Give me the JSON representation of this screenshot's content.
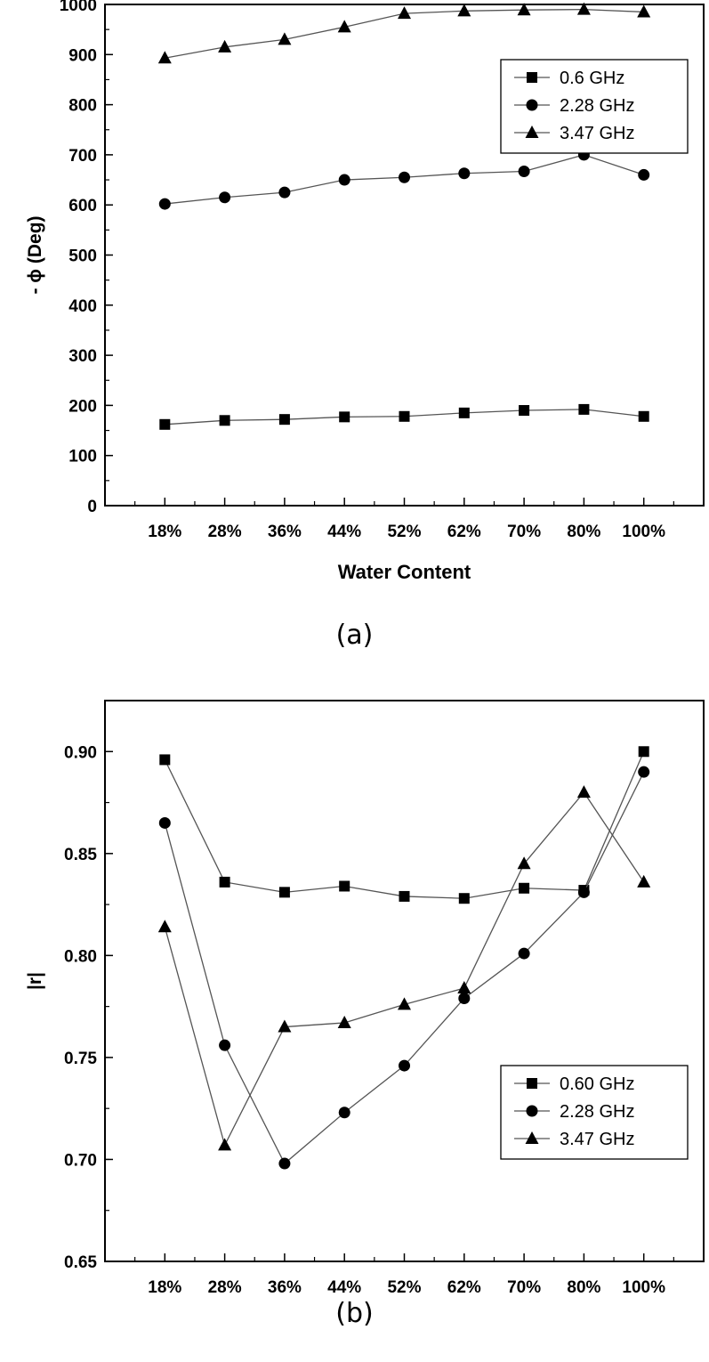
{
  "charts": [
    {
      "type": "line",
      "title": "",
      "caption": "(a)",
      "xlabel": "Water Content",
      "ylabel": "- ϕ (Deg)",
      "categories": [
        "18%",
        "28%",
        "36%",
        "44%",
        "52%",
        "62%",
        "70%",
        "80%",
        "100%"
      ],
      "ylim": [
        0,
        1000
      ],
      "ymajor": [
        0,
        100,
        200,
        300,
        400,
        500,
        600,
        700,
        800,
        900,
        1000
      ],
      "yminor_step": 50,
      "ytick_labels": [
        "0",
        "100",
        "200",
        "300",
        "400",
        "500",
        "600",
        "700",
        "800",
        "900",
        "1000"
      ],
      "legend_position": "top-right",
      "series": [
        {
          "name": "0.6 GHz",
          "marker": "square",
          "values": [
            162,
            170,
            172,
            177,
            178,
            185,
            190,
            192,
            178
          ]
        },
        {
          "name": "2.28 GHz",
          "marker": "circle",
          "values": [
            602,
            615,
            625,
            650,
            655,
            663,
            667,
            700,
            660
          ]
        },
        {
          "name": "3.47 GHz",
          "marker": "triangle",
          "values": [
            893,
            915,
            930,
            955,
            982,
            987,
            989,
            990,
            985
          ]
        }
      ]
    },
    {
      "type": "line",
      "title": "",
      "caption": "(b)",
      "xlabel": "Water Content",
      "ylabel": "|r|",
      "categories": [
        "18%",
        "28%",
        "36%",
        "44%",
        "52%",
        "62%",
        "70%",
        "80%",
        "100%"
      ],
      "ylim": [
        0.65,
        0.925
      ],
      "ymajor": [
        0.65,
        0.7,
        0.75,
        0.8,
        0.85,
        0.9
      ],
      "yminor_step": 0.025,
      "ytick_labels": [
        "0.65",
        "0.70",
        "0.75",
        "0.80",
        "0.85",
        "0.90"
      ],
      "legend_position": "bottom-right",
      "series": [
        {
          "name": "0.60 GHz",
          "marker": "square",
          "values": [
            0.896,
            0.836,
            0.831,
            0.834,
            0.829,
            0.828,
            0.833,
            0.832,
            0.9
          ]
        },
        {
          "name": "2.28 GHz",
          "marker": "circle",
          "values": [
            0.865,
            0.756,
            0.698,
            0.723,
            0.746,
            0.779,
            0.801,
            0.831,
            0.89
          ]
        },
        {
          "name": "3.47 GHz",
          "marker": "triangle",
          "values": [
            0.814,
            0.707,
            0.765,
            0.767,
            0.776,
            0.784,
            0.845,
            0.88,
            0.836
          ]
        }
      ]
    }
  ],
  "chart_data": [
    {
      "type": "line",
      "xlabel": "Water Content",
      "ylabel": "- ϕ (Deg)",
      "categories": [
        "18%",
        "28%",
        "36%",
        "44%",
        "52%",
        "62%",
        "70%",
        "80%",
        "100%"
      ],
      "ylim": [
        0,
        1000
      ],
      "series": [
        {
          "name": "0.6 GHz",
          "values": [
            162,
            170,
            172,
            177,
            178,
            185,
            190,
            192,
            178
          ]
        },
        {
          "name": "2.28 GHz",
          "values": [
            602,
            615,
            625,
            650,
            655,
            663,
            667,
            700,
            660
          ]
        },
        {
          "name": "3.47 GHz",
          "values": [
            893,
            915,
            930,
            955,
            982,
            987,
            989,
            990,
            985
          ]
        }
      ]
    },
    {
      "type": "line",
      "xlabel": "Water Content",
      "ylabel": "|r|",
      "categories": [
        "18%",
        "28%",
        "36%",
        "44%",
        "52%",
        "62%",
        "70%",
        "80%",
        "100%"
      ],
      "ylim": [
        0.65,
        0.925
      ],
      "series": [
        {
          "name": "0.60 GHz",
          "values": [
            0.896,
            0.836,
            0.831,
            0.834,
            0.829,
            0.828,
            0.833,
            0.832,
            0.9
          ]
        },
        {
          "name": "2.28 GHz",
          "values": [
            0.865,
            0.756,
            0.698,
            0.723,
            0.746,
            0.779,
            0.801,
            0.831,
            0.89
          ]
        },
        {
          "name": "3.47 GHz",
          "values": [
            0.814,
            0.707,
            0.765,
            0.767,
            0.776,
            0.784,
            0.845,
            0.88,
            0.836
          ]
        }
      ]
    }
  ]
}
